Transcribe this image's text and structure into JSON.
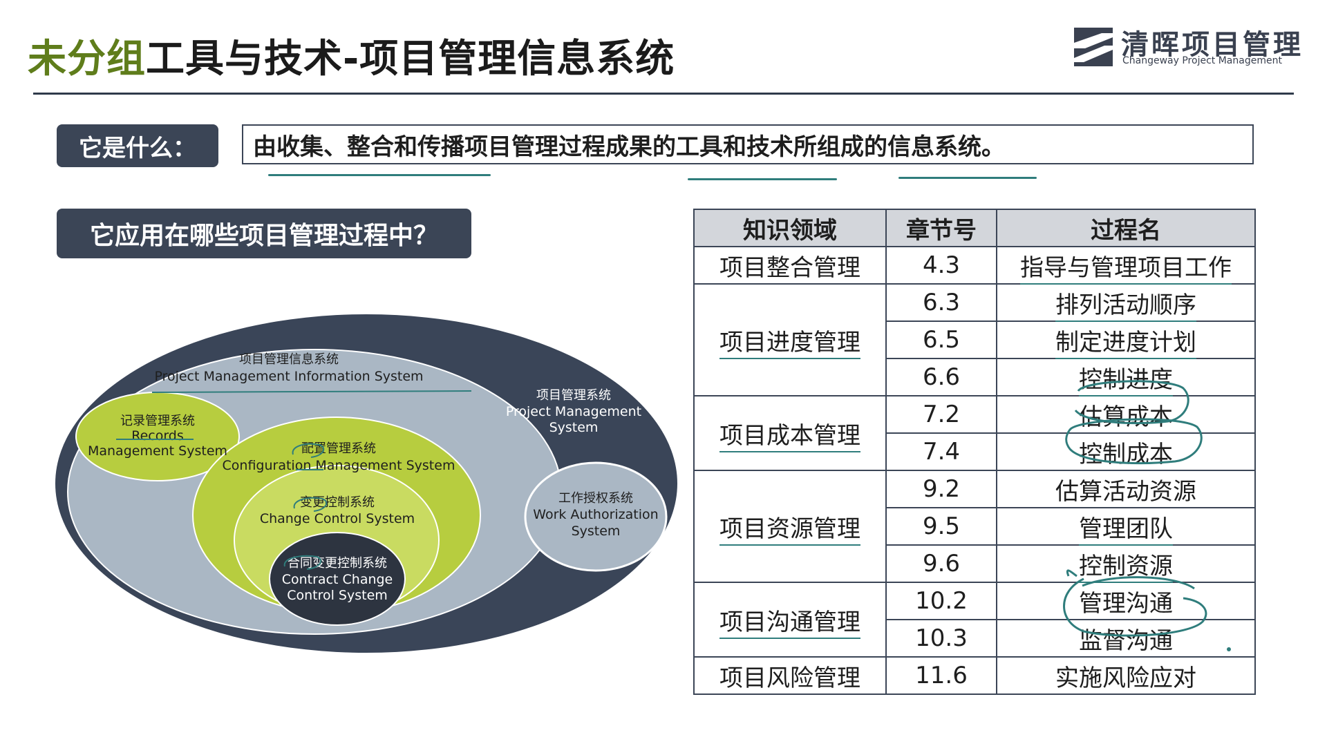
{
  "header": {
    "title_highlight": "未分组",
    "title_rest": "工具与技术-项目管理信息系统",
    "logo_cn": "清晖项目管理",
    "logo_en": "Changeway Project Management"
  },
  "what_is": {
    "label": "它是什么：",
    "definition": "由收集、整合和传播项目管理过程成果的工具和技术所组成的信息系统。"
  },
  "where_applied": {
    "label": "它应用在哪些项目管理过程中？"
  },
  "table": {
    "headers": [
      "知识领域",
      "章节号",
      "过程名"
    ],
    "groups": [
      {
        "area": "项目整合管理",
        "rows": [
          {
            "section": "4.3",
            "process": "指导与管理项目工作"
          }
        ]
      },
      {
        "area": "项目进度管理",
        "rows": [
          {
            "section": "6.3",
            "process": "排列活动顺序"
          },
          {
            "section": "6.5",
            "process": "制定进度计划"
          },
          {
            "section": "6.6",
            "process": "控制进度"
          }
        ]
      },
      {
        "area": "项目成本管理",
        "rows": [
          {
            "section": "7.2",
            "process": "估算成本"
          },
          {
            "section": "7.4",
            "process": "控制成本"
          }
        ]
      },
      {
        "area": "项目资源管理",
        "rows": [
          {
            "section": "9.2",
            "process": "估算活动资源"
          },
          {
            "section": "9.5",
            "process": "管理团队"
          },
          {
            "section": "9.6",
            "process": "控制资源"
          }
        ]
      },
      {
        "area": "项目沟通管理",
        "rows": [
          {
            "section": "10.2",
            "process": "管理沟通"
          },
          {
            "section": "10.3",
            "process": "监督沟通"
          }
        ]
      },
      {
        "area": "项目风险管理",
        "rows": [
          {
            "section": "11.6",
            "process": "实施风险应对"
          }
        ]
      }
    ]
  },
  "diagram": {
    "pms_cn": "项目管理系统",
    "pms_en1": "Project Management",
    "pms_en2": "System",
    "pmis_cn": "项目管理信息系统",
    "pmis_en": "Project Management Information System",
    "rms_cn": "记录管理系统",
    "rms_en1": "Records",
    "rms_en2": "Management System",
    "cms_cn": "配置管理系统",
    "cms_en": "Configuration Management System",
    "ccs_cn": "变更控制系统",
    "ccs_en": "Change Control System",
    "cccs_cn": "合同变更控制系统",
    "cccs_en1": "Contract Change",
    "cccs_en2": "Control System",
    "was_cn": "工作授权系统",
    "was_en1": "Work Authorization",
    "was_en2": "System"
  },
  "colors": {
    "navy": "#3b4556",
    "title_green": "#5f7d1b",
    "ellipse_dark": "#3a4558",
    "ellipse_light": "#aab7c4",
    "lime": "#b7cd3f",
    "underline": "#2f7d7c"
  }
}
